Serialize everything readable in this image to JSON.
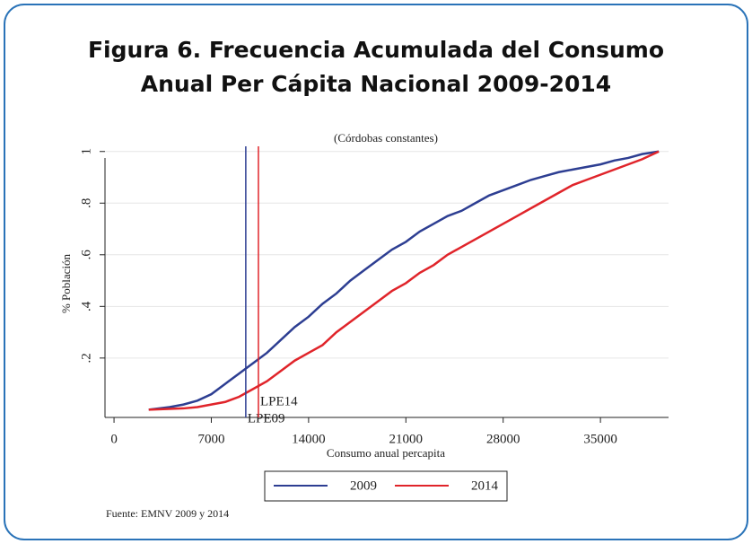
{
  "chart_data": {
    "type": "line",
    "title": [
      "Figura 6. Frecuencia Acumulada del Consumo",
      "Anual Per Cápita Nacional 2009-2014"
    ],
    "subtitle": "(Córdobas constantes)",
    "x_label": "Consumo anual percapita",
    "y_label": "% Población",
    "note": "Fuente: EMNV 2009 y 2014",
    "xlim": [
      -650,
      39900
    ],
    "ylim": [
      -0.03,
      1.02
    ],
    "xticks": [
      0,
      7000,
      14000,
      21000,
      28000,
      35000
    ],
    "yticks": [
      {
        "value": 0.2,
        "label": ".2"
      },
      {
        "value": 0.4,
        "label": ".4"
      },
      {
        "value": 0.6,
        "label": ".6"
      },
      {
        "value": 0.8,
        "label": ".8"
      },
      1
    ],
    "grid": true,
    "legend": "bottom",
    "series": [
      {
        "name": "2009",
        "color": "#2d3e92",
        "x": [
          2500,
          4000,
          5000,
          6000,
          7000,
          8000,
          9000,
          10000,
          11000,
          12000,
          13000,
          14000,
          15000,
          16000,
          17000,
          18000,
          19000,
          20000,
          21000,
          22000,
          23000,
          24000,
          25000,
          26000,
          27000,
          28000,
          29000,
          30000,
          31000,
          32000,
          33000,
          34000,
          35000,
          36000,
          37000,
          38000,
          39200
        ],
        "values": [
          0,
          0.01,
          0.02,
          0.035,
          0.06,
          0.1,
          0.14,
          0.18,
          0.22,
          0.27,
          0.32,
          0.36,
          0.41,
          0.45,
          0.5,
          0.54,
          0.58,
          0.62,
          0.65,
          0.69,
          0.72,
          0.75,
          0.77,
          0.8,
          0.83,
          0.85,
          0.87,
          0.89,
          0.905,
          0.92,
          0.93,
          0.94,
          0.95,
          0.965,
          0.975,
          0.99,
          1.0
        ]
      },
      {
        "name": "2014",
        "color": "#e0242a",
        "x": [
          2500,
          5000,
          6000,
          7000,
          8000,
          9000,
          10000,
          11000,
          12000,
          13000,
          14000,
          15000,
          16000,
          17000,
          18000,
          19000,
          20000,
          21000,
          22000,
          23000,
          24000,
          25000,
          26000,
          27000,
          28000,
          29000,
          30000,
          31000,
          32000,
          33000,
          34000,
          35000,
          36000,
          37000,
          38000,
          39200
        ],
        "values": [
          0,
          0.005,
          0.01,
          0.02,
          0.03,
          0.05,
          0.08,
          0.11,
          0.15,
          0.19,
          0.22,
          0.25,
          0.3,
          0.34,
          0.38,
          0.42,
          0.46,
          0.49,
          0.53,
          0.56,
          0.6,
          0.63,
          0.66,
          0.69,
          0.72,
          0.75,
          0.78,
          0.81,
          0.84,
          0.87,
          0.89,
          0.91,
          0.93,
          0.95,
          0.97,
          1.0
        ]
      }
    ],
    "reference_lines": [
      {
        "label": "LPE09",
        "value": 9480,
        "color": "#2d3e92"
      },
      {
        "label": "LPE14",
        "value": 10390,
        "color": "#e0242a"
      }
    ]
  }
}
